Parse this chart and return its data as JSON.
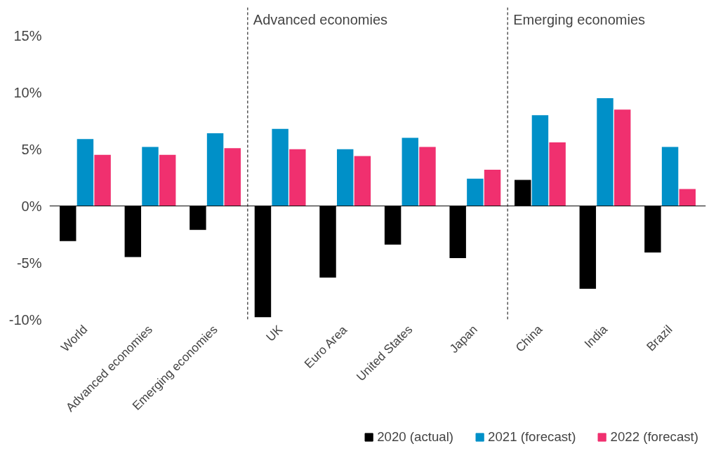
{
  "chart_data": {
    "type": "bar",
    "categories": [
      "World",
      "Advanced economies",
      "Emerging economies",
      "UK",
      "Euro Area",
      "United States",
      "Japan",
      "China",
      "India",
      "Brazil"
    ],
    "series": [
      {
        "name": "2020 (actual)",
        "color": "#000000",
        "values": [
          -3.1,
          -4.5,
          -2.1,
          -9.8,
          -6.3,
          -3.4,
          -4.6,
          2.3,
          -7.3,
          -4.1
        ]
      },
      {
        "name": "2021 (forecast)",
        "color": "#0090c8",
        "values": [
          5.9,
          5.2,
          6.4,
          6.8,
          5.0,
          6.0,
          2.4,
          8.0,
          9.5,
          5.2
        ]
      },
      {
        "name": "2022 (forecast)",
        "color": "#f0306f",
        "values": [
          4.5,
          4.5,
          5.1,
          5.0,
          4.4,
          5.2,
          3.2,
          5.6,
          8.5,
          1.5
        ]
      }
    ],
    "ylim": [
      -10,
      17.5
    ],
    "yticks": [
      {
        "value": -10,
        "label": "-10%"
      },
      {
        "value": -5,
        "label": "-5%"
      },
      {
        "value": 0,
        "label": "0%"
      },
      {
        "value": 5,
        "label": "5%"
      },
      {
        "value": 10,
        "label": "10%"
      },
      {
        "value": 15,
        "label": "15%"
      }
    ],
    "annotations": [
      "Advanced economies",
      "Emerging economies"
    ],
    "grid": false,
    "legend": "bottom"
  }
}
